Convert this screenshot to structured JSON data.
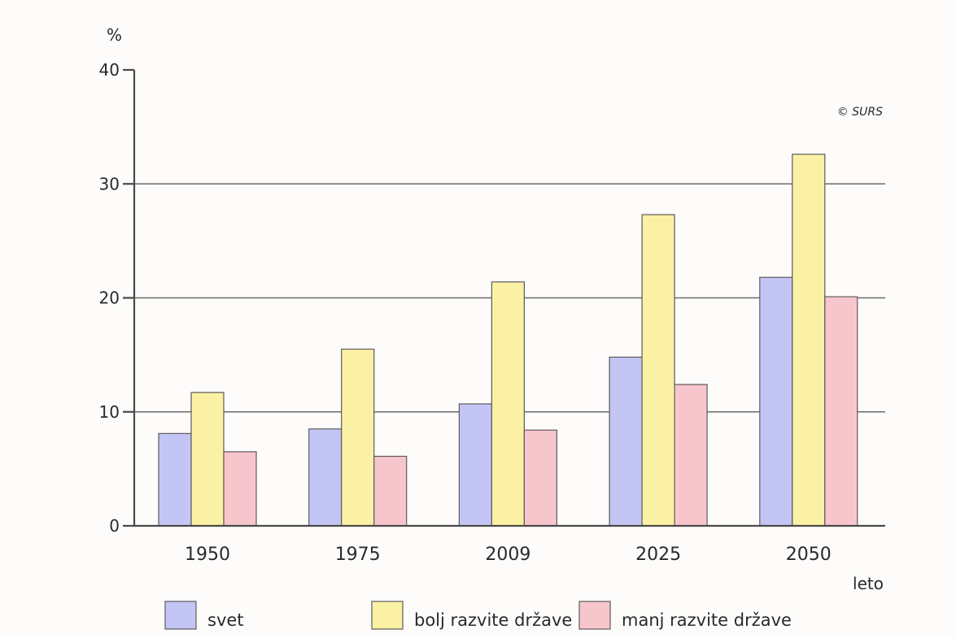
{
  "chart_data": {
    "type": "bar",
    "categories": [
      "1950",
      "1975",
      "2009",
      "2025",
      "2050"
    ],
    "series": [
      {
        "name": "svet",
        "values": [
          8.1,
          8.5,
          10.7,
          14.8,
          21.8
        ],
        "color": "#c3c6f4"
      },
      {
        "name": "bolj razvite države",
        "values": [
          11.7,
          15.5,
          21.4,
          27.3,
          32.6
        ],
        "color": "#fbf1a4"
      },
      {
        "name": "manj razvite države",
        "values": [
          6.5,
          6.1,
          8.4,
          12.4,
          20.1
        ],
        "color": "#f7c6cc"
      }
    ],
    "ylabel": "%",
    "xlabel": "leto",
    "ylim": [
      0,
      40
    ],
    "yticks": [
      0,
      10,
      20,
      30,
      40
    ],
    "grid": true,
    "legend_position": "bottom",
    "source": "© SURS"
  }
}
